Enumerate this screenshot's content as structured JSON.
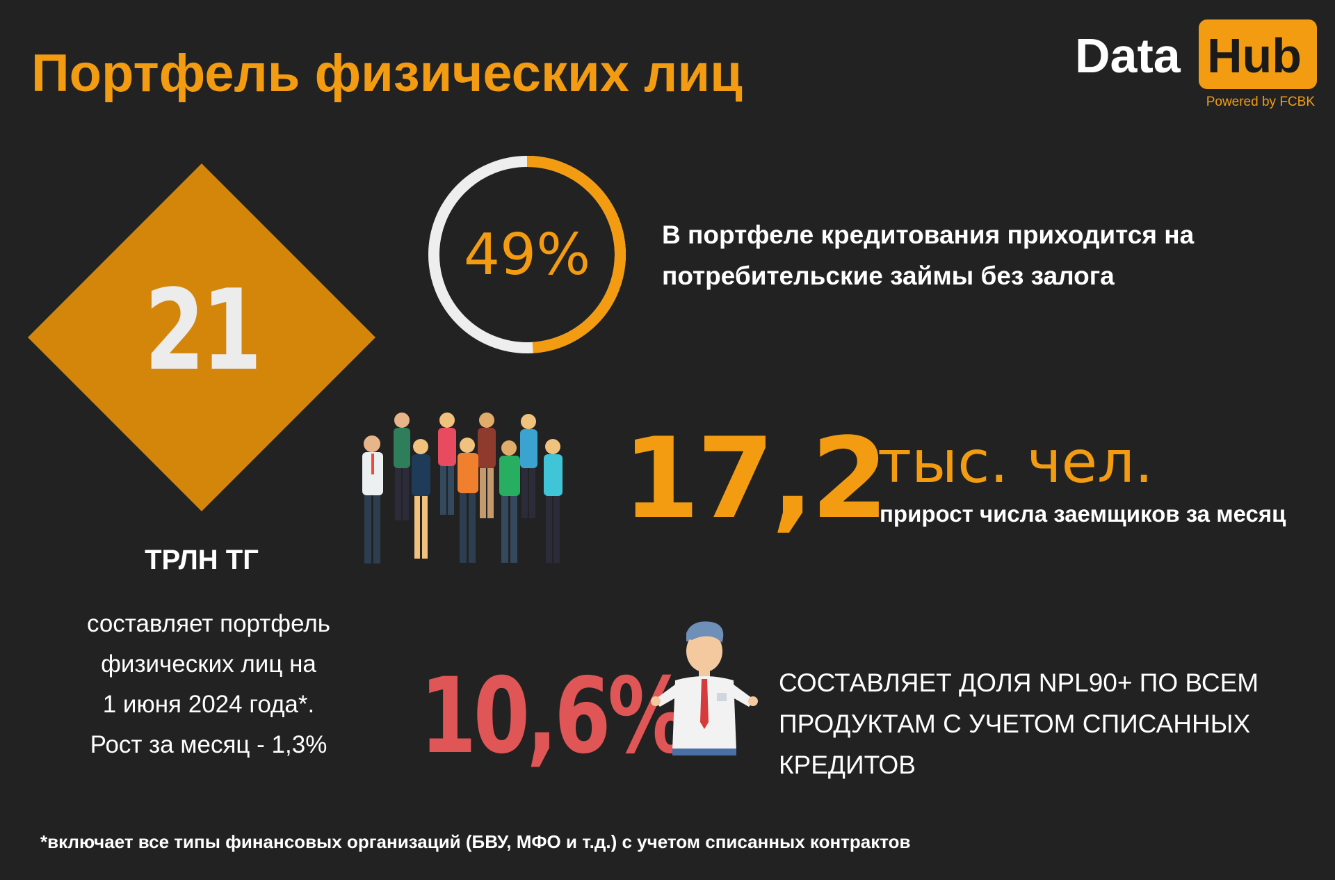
{
  "header": {
    "title": "Портфель физических лиц"
  },
  "logo": {
    "word_data": "Data",
    "word_hub": "Hub",
    "powered": "Powered by FCBK"
  },
  "portfolio": {
    "value": "21",
    "unit": "ТРЛН ТГ",
    "description_lines": [
      "составляет портфель",
      "физических лиц на",
      "1 июня 2024 года*.",
      "Рост за месяц - 1,3%"
    ]
  },
  "unsecured_share": {
    "percent_label": "49%",
    "fraction": 0.49,
    "text_lines": [
      "В портфеле кредитования приходится на",
      "потребительские займы без залога"
    ]
  },
  "borrowers_growth": {
    "value": "17,2",
    "unit": "тыс. чел.",
    "caption": "прирост числа заемщиков за месяц"
  },
  "npl": {
    "value": "10,6%",
    "text_lines": [
      "СОСТАВЛЯЕТ ДОЛЯ NPL90+ ПО ВСЕМ",
      "ПРОДУКТАМ С УЧЕТОМ СПИСАННЫХ",
      "КРЕДИТОВ"
    ]
  },
  "footnote": "*включает все типы финансовых организаций (БВУ, МФО и т.д.) с учетом списанных контрактов",
  "colors": {
    "background": "#222222",
    "accent": "#f39c12",
    "diamond": "#d4860b",
    "npl_red": "#e05555",
    "ring_track": "#eeeeee"
  },
  "icons": {
    "people": "people-group-icon",
    "man": "confused-man-icon"
  }
}
